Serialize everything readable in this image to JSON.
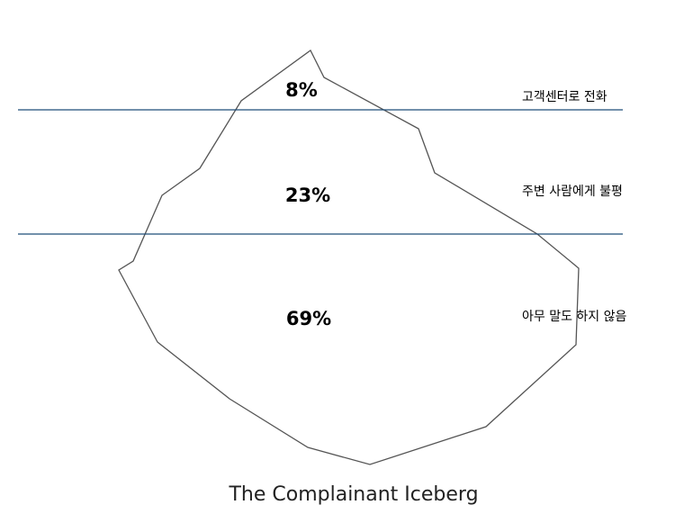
{
  "title": "The Complainant Iceberg",
  "layers": [
    {
      "label": "8%",
      "description": "고객센터로 전화"
    },
    {
      "label": "23%",
      "description": "주변 사람에게 불평"
    },
    {
      "label": "69%",
      "description": "아무 말도 하지 않음"
    }
  ]
}
